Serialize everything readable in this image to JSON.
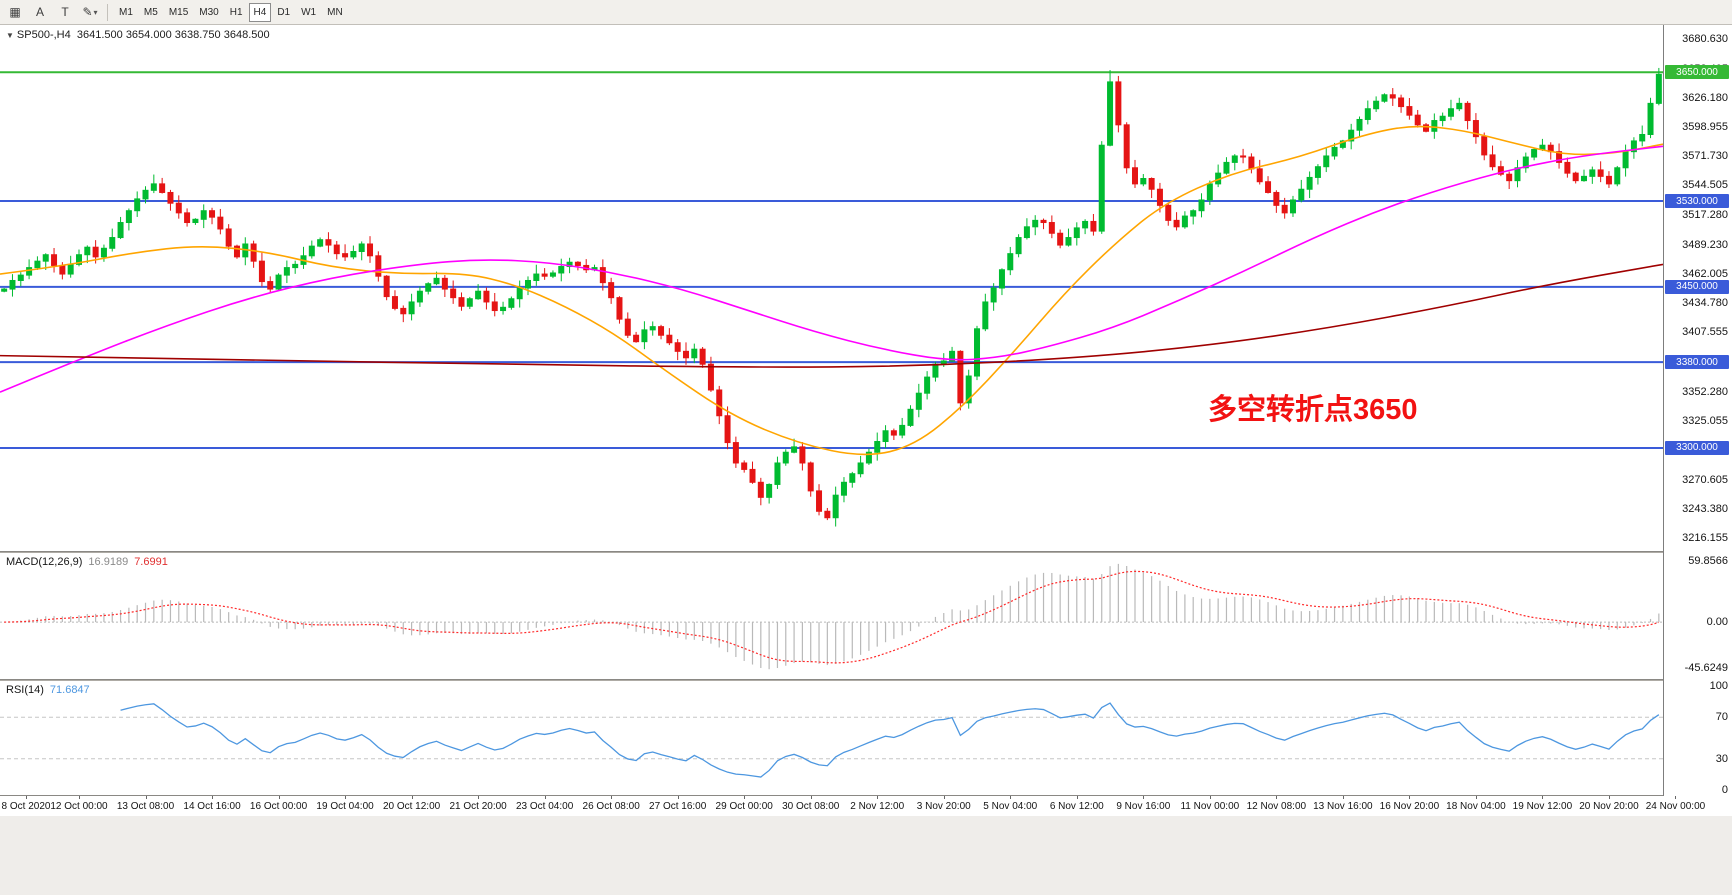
{
  "toolbar": {
    "tools": [
      {
        "name": "chart-layout-icon",
        "glyph": "▦"
      },
      {
        "name": "text-annotation-tool-icon",
        "glyph": "A"
      },
      {
        "name": "template-tool-icon",
        "glyph": "T"
      },
      {
        "name": "draw-style-tool-icon",
        "glyph": "✎",
        "dropdown": true
      }
    ],
    "timeframes": [
      "M1",
      "M5",
      "M15",
      "M30",
      "H1",
      "H4",
      "D1",
      "W1",
      "MN"
    ],
    "active_timeframe": "H4"
  },
  "header": {
    "collapse_icon": "▼",
    "symbol": "SP500-,H4",
    "open": "3641.500",
    "high": "3654.000",
    "low": "3638.750",
    "close": "3648.500"
  },
  "annotation": {
    "text": "多空转折点3650",
    "color": "#f21212"
  },
  "price_axis": {
    "labels": [
      "3680.630",
      "3653.405",
      "3626.180",
      "3598.955",
      "3571.730",
      "3544.505",
      "3517.280",
      "3489.230",
      "3462.005",
      "3434.780",
      "3407.555",
      "3380.330",
      "3352.280",
      "3325.055",
      "3297.830",
      "3270.605",
      "3243.380",
      "3216.155"
    ]
  },
  "time_axis": {
    "labels": [
      "8 Oct 2020",
      "12 Oct 00:00",
      "13 Oct 08:00",
      "14 Oct 16:00",
      "16 Oct 00:00",
      "19 Oct 04:00",
      "20 Oct 12:00",
      "21 Oct 20:00",
      "23 Oct 04:00",
      "26 Oct 08:00",
      "27 Oct 16:00",
      "29 Oct 00:00",
      "30 Oct 08:00",
      "2 Nov 12:00",
      "3 Nov 20:00",
      "5 Nov 04:00",
      "6 Nov 12:00",
      "9 Nov 16:00",
      "11 Nov 00:00",
      "12 Nov 08:00",
      "13 Nov 16:00",
      "16 Nov 20:00",
      "18 Nov 04:00",
      "19 Nov 12:00",
      "20 Nov 20:00",
      "24 Nov 00:00"
    ]
  },
  "panels": {
    "macd": {
      "title": "MACD(12,26,9)",
      "value": "16.9189",
      "signal_value": "7.6991",
      "axis_labels": [
        "59.8566",
        "0.00",
        "-45.6249"
      ],
      "scale_max": 68,
      "scale_min": -56,
      "histogram_color": "#b9b9b9",
      "signal_color": "#ff2a2a"
    },
    "rsi": {
      "title": "RSI(14)",
      "value": "71.6847",
      "axis_labels": [
        "100",
        "70",
        "30",
        "0"
      ],
      "levels": [
        70,
        30
      ],
      "line_color": "#4d97e0"
    }
  },
  "chart_data": {
    "type": "candlestick",
    "symbol": "SP500",
    "timeframe": "H4",
    "visible_range": {
      "start": "8 Oct 2020",
      "end": "24 Nov 2020"
    },
    "price_scale": {
      "max": 3694,
      "min": 3204
    },
    "first_open": 3446,
    "closes": [
      3448,
      3456,
      3461,
      3468,
      3474,
      3480,
      3470,
      3462,
      3471,
      3480,
      3487,
      3478,
      3486,
      3496,
      3510,
      3521,
      3532,
      3540,
      3546,
      3538,
      3528,
      3519,
      3510,
      3513,
      3521,
      3515,
      3504,
      3488,
      3478,
      3490,
      3474,
      3455,
      3448,
      3461,
      3468,
      3471,
      3479,
      3488,
      3494,
      3489,
      3481,
      3478,
      3483,
      3490,
      3479,
      3460,
      3441,
      3430,
      3425,
      3436,
      3446,
      3453,
      3458,
      3448,
      3440,
      3432,
      3439,
      3446,
      3436,
      3428,
      3431,
      3439,
      3449,
      3456,
      3462,
      3460,
      3463,
      3469,
      3473,
      3470,
      3466,
      3468,
      3454,
      3440,
      3420,
      3405,
      3399,
      3410,
      3413,
      3405,
      3398,
      3390,
      3384,
      3392,
      3378,
      3354,
      3330,
      3305,
      3286,
      3280,
      3268,
      3254,
      3266,
      3286,
      3296,
      3301,
      3286,
      3260,
      3241,
      3235,
      3256,
      3268,
      3276,
      3286,
      3296,
      3306,
      3316,
      3312,
      3321,
      3336,
      3351,
      3366,
      3378,
      3381,
      3390,
      3342,
      3367,
      3411,
      3436,
      3449,
      3466,
      3481,
      3496,
      3506,
      3512,
      3510,
      3500,
      3489,
      3496,
      3505,
      3511,
      3502,
      3582,
      3641,
      3601,
      3561,
      3546,
      3551,
      3541,
      3526,
      3512,
      3506,
      3516,
      3521,
      3531,
      3546,
      3556,
      3566,
      3572,
      3571,
      3560,
      3548,
      3538,
      3526,
      3519,
      3531,
      3541,
      3552,
      3562,
      3572,
      3580,
      3586,
      3596,
      3606,
      3616,
      3623,
      3629,
      3626,
      3618,
      3610,
      3601,
      3595,
      3605,
      3609,
      3616,
      3621,
      3605,
      3590,
      3573,
      3562,
      3555,
      3549,
      3561,
      3571,
      3578,
      3582,
      3576,
      3566,
      3556,
      3549,
      3553,
      3559,
      3553,
      3546,
      3561,
      3576,
      3586,
      3592,
      3621,
      3648
    ],
    "high_overrides": {
      "133": 3652,
      "199": 3654
    },
    "candle_colors": {
      "up": "#00bb30",
      "down": "#e51414"
    },
    "horizontal_lines": [
      {
        "price": 3650,
        "label": "3650.000",
        "color": "#35b935"
      },
      {
        "price": 3530,
        "label": "3530.000",
        "color": "#3a5bd9"
      },
      {
        "price": 3450,
        "label": "3450.000",
        "color": "#3a5bd9"
      },
      {
        "price": 3380,
        "label": "3380.000",
        "color": "#3a5bd9"
      },
      {
        "price": 3300,
        "label": "3300.000",
        "color": "#3a5bd9"
      }
    ],
    "moving_averages": [
      {
        "name": "ma-fast",
        "color": "#ffa500",
        "points": [
          [
            0,
            3462
          ],
          [
            0.04,
            3470
          ],
          [
            0.08,
            3482
          ],
          [
            0.12,
            3489
          ],
          [
            0.16,
            3483
          ],
          [
            0.2,
            3468
          ],
          [
            0.24,
            3462
          ],
          [
            0.28,
            3463
          ],
          [
            0.31,
            3452
          ],
          [
            0.34,
            3432
          ],
          [
            0.37,
            3406
          ],
          [
            0.4,
            3372
          ],
          [
            0.44,
            3330
          ],
          [
            0.48,
            3304
          ],
          [
            0.52,
            3291
          ],
          [
            0.55,
            3302
          ],
          [
            0.58,
            3340
          ],
          [
            0.61,
            3390
          ],
          [
            0.64,
            3444
          ],
          [
            0.67,
            3490
          ],
          [
            0.7,
            3528
          ],
          [
            0.74,
            3556
          ],
          [
            0.78,
            3570
          ],
          [
            0.82,
            3592
          ],
          [
            0.85,
            3601
          ],
          [
            0.88,
            3596
          ],
          [
            0.91,
            3584
          ],
          [
            0.94,
            3573
          ],
          [
            0.97,
            3574
          ],
          [
            1,
            3583
          ]
        ]
      },
      {
        "name": "ma-slow",
        "color": "#ff00ff",
        "points": [
          [
            0,
            3352
          ],
          [
            0.05,
            3384
          ],
          [
            0.1,
            3414
          ],
          [
            0.15,
            3440
          ],
          [
            0.2,
            3459
          ],
          [
            0.25,
            3471
          ],
          [
            0.29,
            3476
          ],
          [
            0.33,
            3473
          ],
          [
            0.37,
            3463
          ],
          [
            0.41,
            3448
          ],
          [
            0.45,
            3428
          ],
          [
            0.49,
            3408
          ],
          [
            0.53,
            3392
          ],
          [
            0.57,
            3381
          ],
          [
            0.6,
            3384
          ],
          [
            0.63,
            3394
          ],
          [
            0.67,
            3412
          ],
          [
            0.71,
            3438
          ],
          [
            0.75,
            3466
          ],
          [
            0.79,
            3496
          ],
          [
            0.83,
            3522
          ],
          [
            0.87,
            3543
          ],
          [
            0.91,
            3560
          ],
          [
            0.95,
            3572
          ],
          [
            1,
            3581
          ]
        ]
      },
      {
        "name": "ma-long",
        "color": "#a00000",
        "points": [
          [
            0,
            3386
          ],
          [
            0.15,
            3382
          ],
          [
            0.3,
            3378
          ],
          [
            0.45,
            3375
          ],
          [
            0.55,
            3376
          ],
          [
            0.65,
            3384
          ],
          [
            0.73,
            3396
          ],
          [
            0.8,
            3412
          ],
          [
            0.87,
            3432
          ],
          [
            0.93,
            3452
          ],
          [
            1,
            3471
          ]
        ]
      }
    ]
  }
}
